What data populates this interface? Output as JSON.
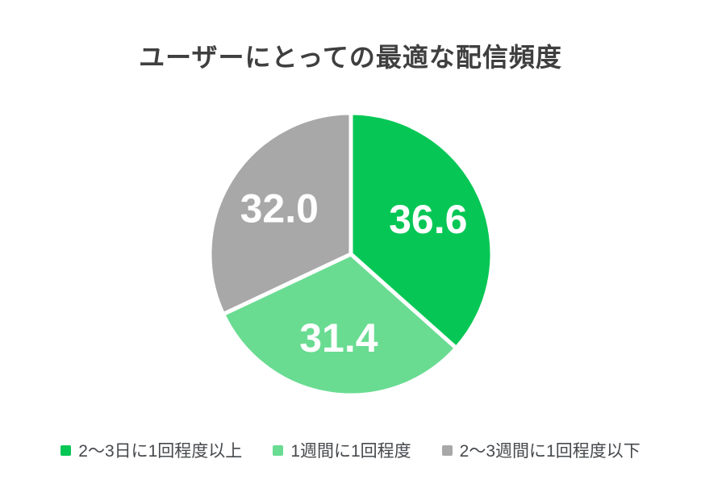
{
  "page": {
    "background": "#FFFFFF"
  },
  "chart_data": {
    "type": "pie",
    "title": "ユーザーにとっての最適な配信頻度",
    "direction": "clockwise",
    "start_angle_deg": 0,
    "legend_position": "bottom",
    "value_label_color": "#FFFFFF",
    "title_color": "#3F3F3F",
    "slices": [
      {
        "label": "2〜3日に1回程度以上",
        "value": 36.6,
        "display_value": "36.6",
        "color": "#06C755"
      },
      {
        "label": "1週間に1回程度",
        "value": 31.4,
        "display_value": "31.4",
        "color": "#69DC92"
      },
      {
        "label": "2〜3週間に1回程度以下",
        "value": 32.0,
        "display_value": "32.0",
        "color": "#A8A8A8"
      }
    ]
  }
}
